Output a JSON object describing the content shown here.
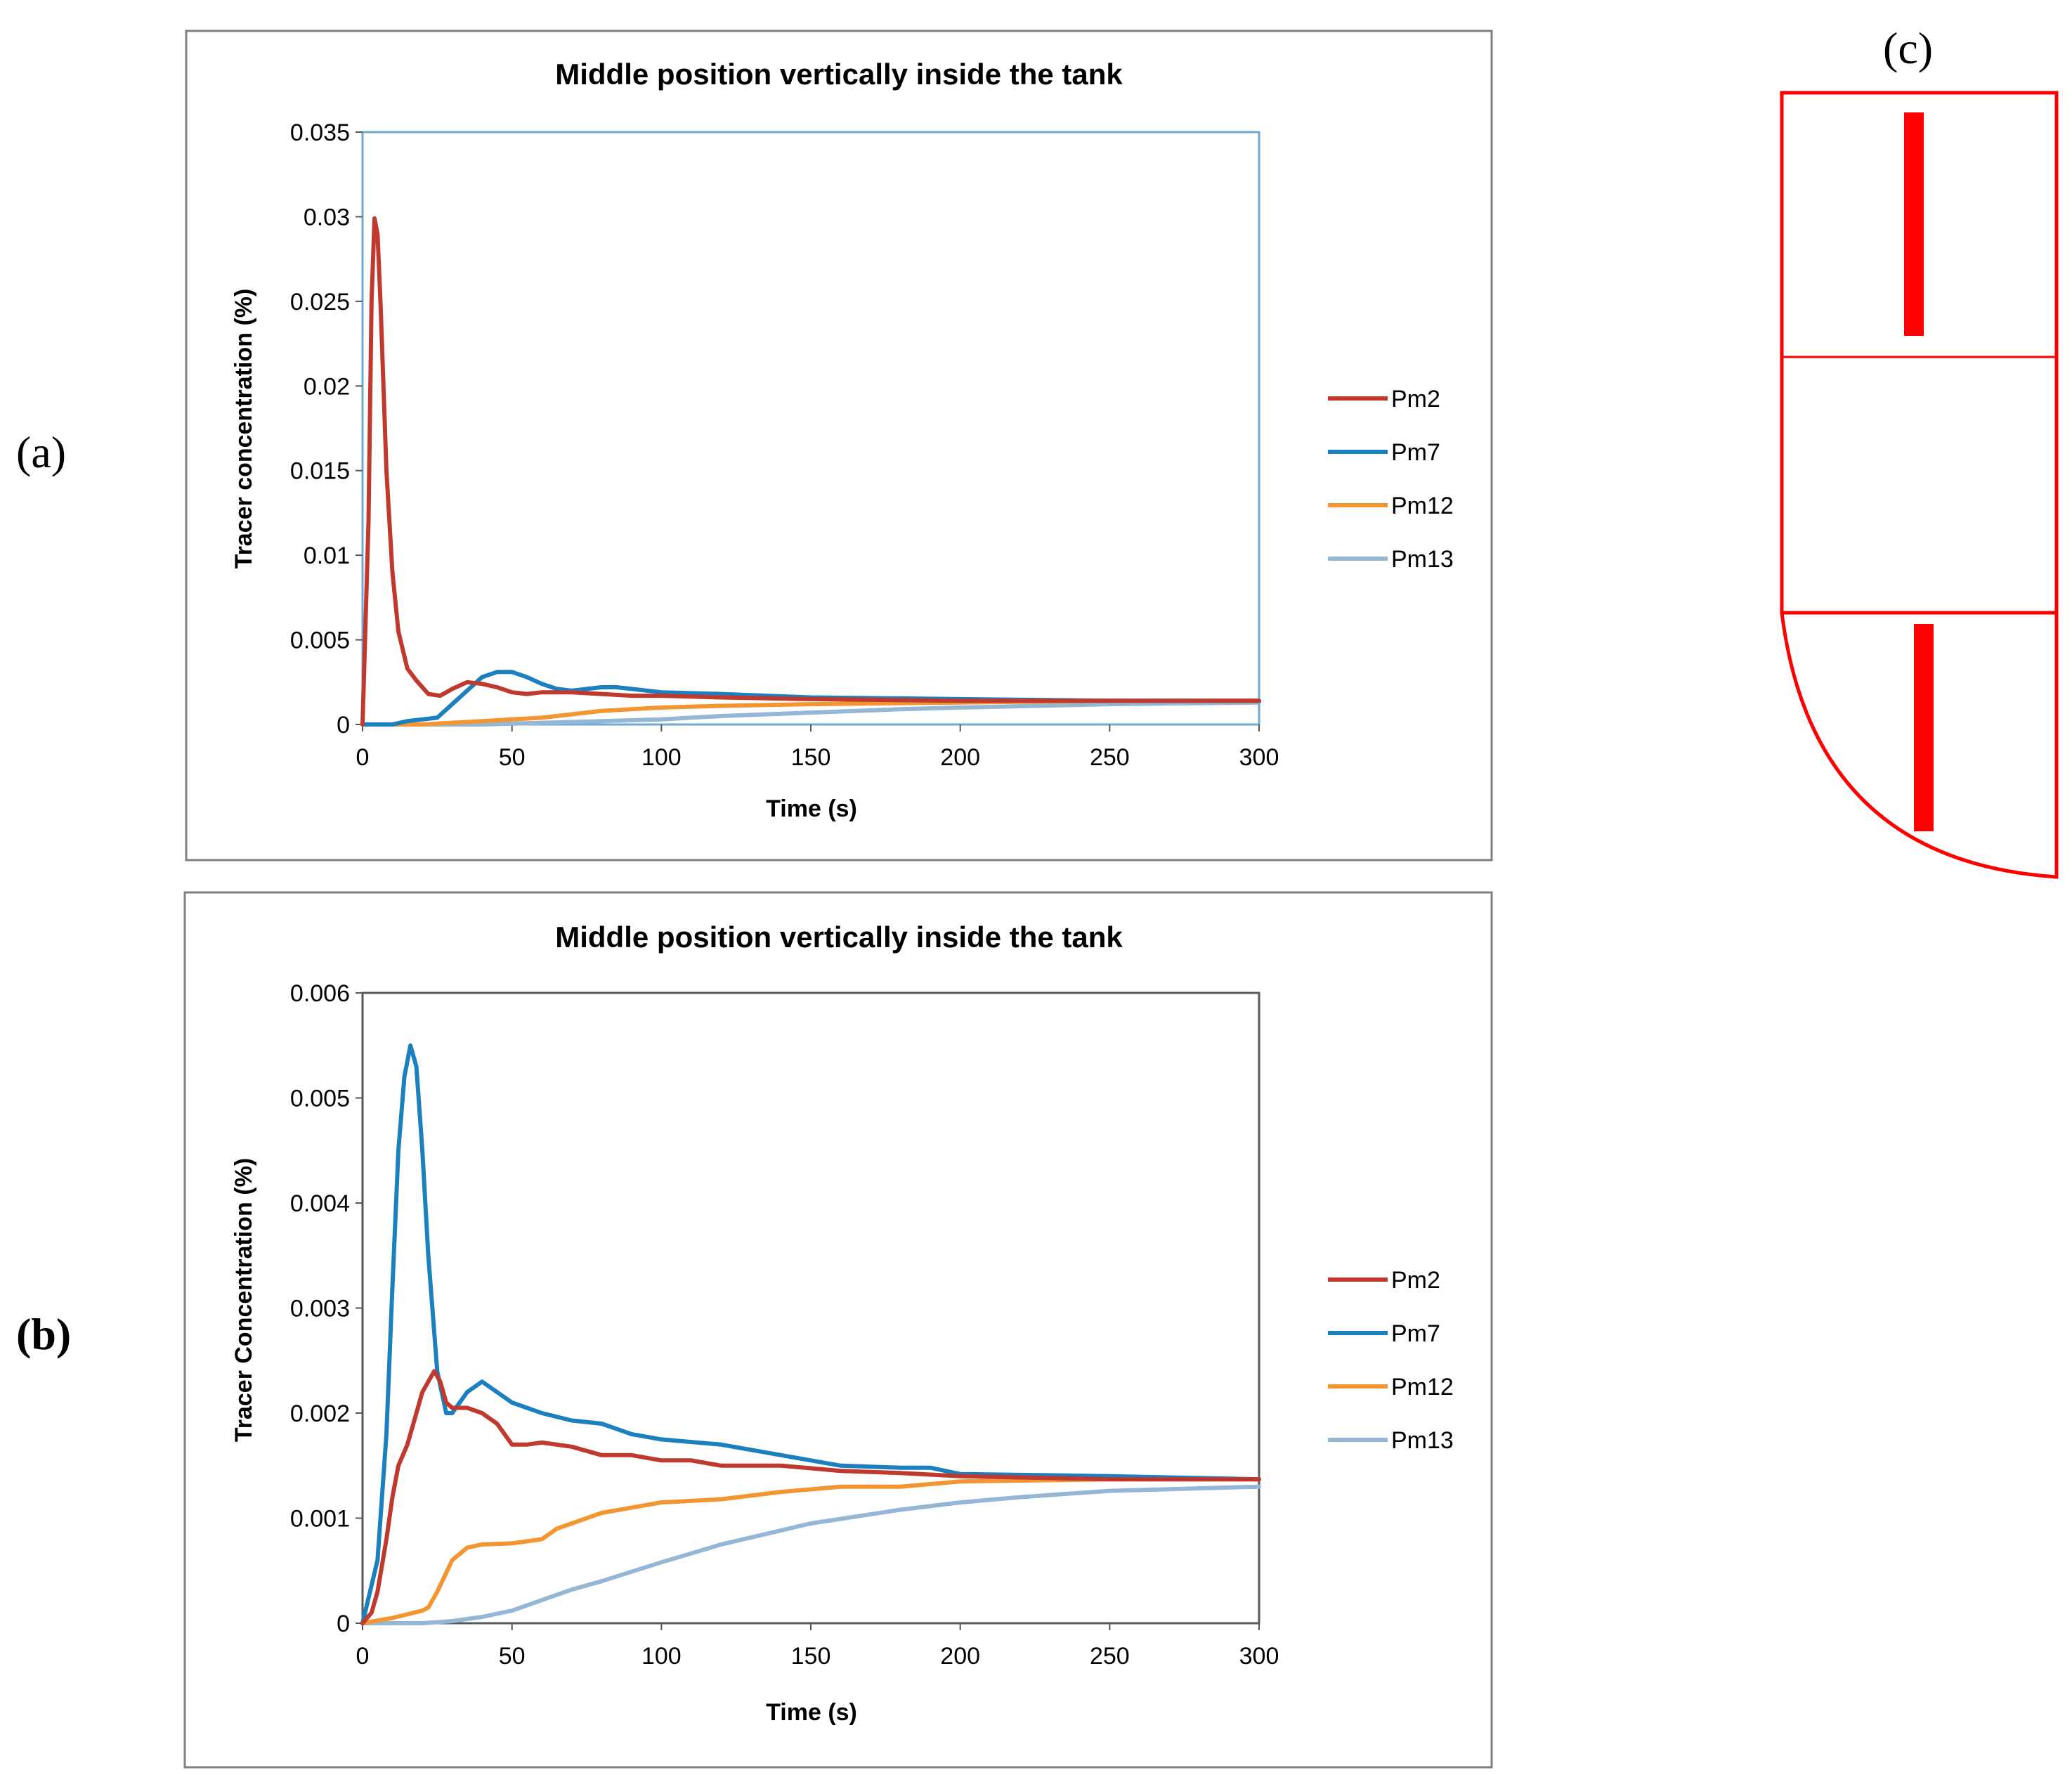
{
  "panels": {
    "a": "(a)",
    "b": "(b)",
    "c": "(c)"
  },
  "colors": {
    "Pm2": "#c0392f",
    "Pm7": "#1a80c0",
    "Pm12": "#f39530",
    "Pm13": "#94b7d6",
    "frame_a": "#70a9d4",
    "frame_b": "#595959",
    "diagram": "#ff0000"
  },
  "chart_data": [
    {
      "type": "line",
      "title": "Middle position vertically inside  the tank",
      "xlabel": "Time (s)",
      "ylabel": "Tracer concentration (%)",
      "xlim": [
        0,
        300
      ],
      "ylim": [
        0,
        0.035
      ],
      "xticks": [
        "0",
        "50",
        "100",
        "150",
        "200",
        "250",
        "300"
      ],
      "yticks": [
        "0",
        "0.005",
        "0.01",
        "0.015",
        "0.02",
        "0.025",
        "0.03",
        "0.035"
      ],
      "legend": "right",
      "series": [
        {
          "name": "Pm2",
          "x": [
            0,
            2,
            3,
            4,
            5,
            6,
            8,
            10,
            12,
            15,
            18,
            22,
            26,
            30,
            35,
            40,
            45,
            50,
            55,
            60,
            70,
            80,
            90,
            100,
            120,
            150,
            200,
            250,
            300
          ],
          "y": [
            0,
            0.012,
            0.025,
            0.0299,
            0.029,
            0.025,
            0.015,
            0.009,
            0.0055,
            0.0033,
            0.0026,
            0.0018,
            0.0017,
            0.0021,
            0.0025,
            0.0024,
            0.0022,
            0.0019,
            0.0018,
            0.0019,
            0.0019,
            0.0018,
            0.0017,
            0.0017,
            0.0016,
            0.0015,
            0.0014,
            0.0014,
            0.0014
          ]
        },
        {
          "name": "Pm7",
          "x": [
            0,
            10,
            15,
            20,
            25,
            30,
            35,
            40,
            45,
            50,
            55,
            60,
            65,
            70,
            75,
            80,
            85,
            90,
            100,
            120,
            150,
            200,
            250,
            300
          ],
          "y": [
            0,
            0,
            0.0002,
            0.0003,
            0.0004,
            0.0012,
            0.002,
            0.0028,
            0.0031,
            0.0031,
            0.0028,
            0.0024,
            0.0021,
            0.002,
            0.0021,
            0.0022,
            0.0022,
            0.0021,
            0.0019,
            0.0018,
            0.0016,
            0.0015,
            0.0014,
            0.0014
          ]
        },
        {
          "name": "Pm12",
          "x": [
            0,
            20,
            30,
            40,
            50,
            60,
            70,
            80,
            90,
            100,
            120,
            150,
            200,
            250,
            300
          ],
          "y": [
            0,
            0,
            0.0001,
            0.0002,
            0.0003,
            0.0004,
            0.0006,
            0.0008,
            0.0009,
            0.001,
            0.0011,
            0.0012,
            0.0013,
            0.0014,
            0.0014
          ]
        },
        {
          "name": "Pm13",
          "x": [
            0,
            40,
            60,
            80,
            100,
            120,
            150,
            180,
            200,
            250,
            300
          ],
          "y": [
            0,
            0,
            0.0001,
            0.0002,
            0.0003,
            0.0005,
            0.0007,
            0.0009,
            0.001,
            0.0012,
            0.0013
          ]
        }
      ]
    },
    {
      "type": "line",
      "title": "Middle position vertically inside the tank",
      "xlabel": "Time (s)",
      "ylabel": "Tracer Concentration (%)",
      "xlim": [
        0,
        300
      ],
      "ylim": [
        0,
        0.006
      ],
      "xticks": [
        "0",
        "50",
        "100",
        "150",
        "200",
        "250",
        "300"
      ],
      "yticks": [
        "0",
        "0.001",
        "0.002",
        "0.003",
        "0.004",
        "0.005",
        "0.006"
      ],
      "legend": "right",
      "series": [
        {
          "name": "Pm2",
          "x": [
            0,
            3,
            5,
            8,
            10,
            12,
            15,
            18,
            20,
            22,
            24,
            26,
            28,
            30,
            35,
            40,
            45,
            50,
            55,
            60,
            65,
            70,
            80,
            90,
            100,
            110,
            120,
            140,
            160,
            180,
            200,
            250,
            300
          ],
          "y": [
            0,
            0.0001,
            0.0003,
            0.0008,
            0.0012,
            0.0015,
            0.0017,
            0.002,
            0.0022,
            0.0023,
            0.0024,
            0.0023,
            0.0021,
            0.00205,
            0.00205,
            0.002,
            0.0019,
            0.0017,
            0.0017,
            0.00172,
            0.0017,
            0.00168,
            0.0016,
            0.0016,
            0.00155,
            0.00155,
            0.0015,
            0.0015,
            0.00145,
            0.00143,
            0.0014,
            0.00137,
            0.00137
          ]
        },
        {
          "name": "Pm7",
          "x": [
            0,
            5,
            8,
            10,
            12,
            14,
            16,
            18,
            20,
            22,
            25,
            28,
            30,
            35,
            40,
            45,
            50,
            60,
            70,
            80,
            90,
            100,
            120,
            140,
            160,
            180,
            190,
            200,
            250,
            300
          ],
          "y": [
            0,
            0.0006,
            0.0018,
            0.0032,
            0.0045,
            0.0052,
            0.0055,
            0.0053,
            0.0045,
            0.0035,
            0.0024,
            0.002,
            0.002,
            0.0022,
            0.0023,
            0.0022,
            0.0021,
            0.002,
            0.00193,
            0.0019,
            0.0018,
            0.00175,
            0.0017,
            0.0016,
            0.0015,
            0.00148,
            0.00148,
            0.00142,
            0.0014,
            0.00137
          ]
        },
        {
          "name": "Pm12",
          "x": [
            0,
            10,
            20,
            22,
            25,
            30,
            35,
            40,
            50,
            60,
            65,
            70,
            80,
            90,
            100,
            120,
            140,
            160,
            180,
            200,
            250,
            300
          ],
          "y": [
            0,
            5e-05,
            0.00012,
            0.00015,
            0.0003,
            0.0006,
            0.00072,
            0.00075,
            0.00076,
            0.0008,
            0.0009,
            0.00095,
            0.00105,
            0.0011,
            0.00115,
            0.00118,
            0.00125,
            0.0013,
            0.0013,
            0.00135,
            0.00137,
            0.00137
          ]
        },
        {
          "name": "Pm13",
          "x": [
            0,
            20,
            30,
            40,
            50,
            60,
            70,
            80,
            100,
            120,
            150,
            180,
            200,
            220,
            250,
            300
          ],
          "y": [
            0,
            0,
            2e-05,
            6e-05,
            0.00012,
            0.00022,
            0.00032,
            0.0004,
            0.00058,
            0.00075,
            0.00095,
            0.00108,
            0.00115,
            0.0012,
            0.00126,
            0.0013
          ]
        }
      ]
    }
  ]
}
